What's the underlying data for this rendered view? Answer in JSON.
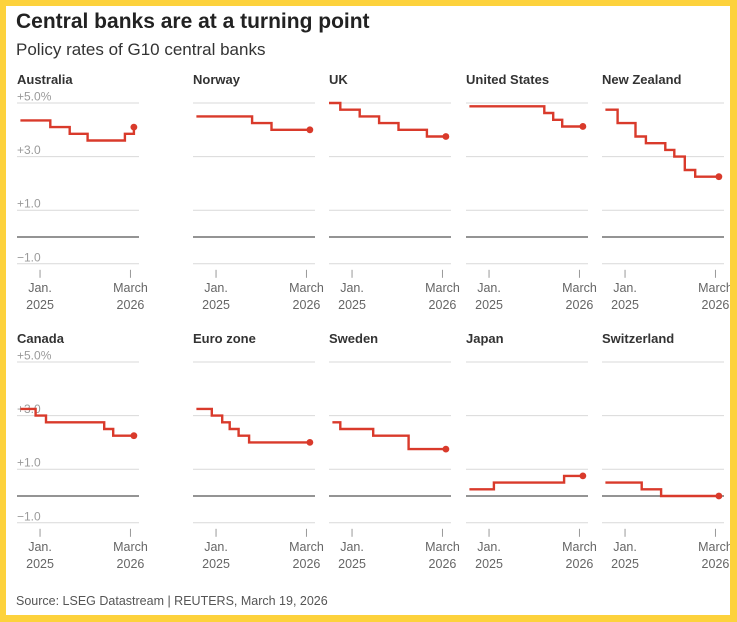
{
  "header": {
    "title": "Central banks are at a turning point",
    "subtitle": "Policy rates of G10 central banks"
  },
  "footer": {
    "source": "Source: LSEG Datastream | REUTERS, March 19, 2026"
  },
  "colors": {
    "line": "#d93a2b",
    "zero_line": "#555555",
    "grid": "#d9d9d9",
    "tick": "#999999"
  },
  "chart_data": {
    "type": "line",
    "step": true,
    "unit": "%",
    "ylim": [
      -1.0,
      5.0
    ],
    "yticks": [
      {
        "value": 5.0,
        "label": "+5.0%"
      },
      {
        "value": 3.0,
        "label": "+3.0"
      },
      {
        "value": 1.0,
        "label": "+1.0"
      },
      {
        "value": -1.0,
        "label": "−1.0"
      }
    ],
    "xlim": [
      "2024-09-15",
      "2026-04-10"
    ],
    "xticks": [
      {
        "date": "2025-01-01",
        "label1": "Jan.",
        "label2": "2025"
      },
      {
        "date": "2026-03-01",
        "label1": "March",
        "label2": "2026"
      }
    ],
    "series": [
      {
        "name": "Australia",
        "points": [
          [
            "2024-10-01",
            4.35
          ],
          [
            "2025-02-18",
            4.1
          ],
          [
            "2025-05-20",
            3.85
          ],
          [
            "2025-08-12",
            3.6
          ],
          [
            "2026-02-03",
            3.85
          ],
          [
            "2026-03-17",
            4.1
          ]
        ]
      },
      {
        "name": "Norway",
        "points": [
          [
            "2024-10-01",
            4.5
          ],
          [
            "2025-06-19",
            4.25
          ],
          [
            "2025-09-18",
            4.0
          ],
          [
            "2026-03-17",
            4.0
          ]
        ]
      },
      {
        "name": "UK",
        "points": [
          [
            "2024-09-15",
            5.0
          ],
          [
            "2024-11-07",
            4.75
          ],
          [
            "2025-02-06",
            4.5
          ],
          [
            "2025-05-08",
            4.25
          ],
          [
            "2025-08-07",
            4.0
          ],
          [
            "2025-12-18",
            3.75
          ],
          [
            "2026-03-17",
            3.75
          ]
        ]
      },
      {
        "name": "United States",
        "points": [
          [
            "2024-10-01",
            4.875
          ],
          [
            "2025-09-17",
            4.625
          ],
          [
            "2025-10-29",
            4.375
          ],
          [
            "2025-12-10",
            4.125
          ],
          [
            "2026-03-17",
            4.125
          ]
        ]
      },
      {
        "name": "New Zealand",
        "points": [
          [
            "2024-10-01",
            4.75
          ],
          [
            "2024-11-27",
            4.25
          ],
          [
            "2025-02-19",
            3.75
          ],
          [
            "2025-04-09",
            3.5
          ],
          [
            "2025-07-09",
            3.25
          ],
          [
            "2025-08-20",
            3.0
          ],
          [
            "2025-10-08",
            2.5
          ],
          [
            "2025-11-26",
            2.25
          ],
          [
            "2026-03-17",
            2.25
          ]
        ]
      },
      {
        "name": "Canada",
        "points": [
          [
            "2024-10-01",
            3.25
          ],
          [
            "2024-12-11",
            3.0
          ],
          [
            "2025-01-29",
            2.75
          ],
          [
            "2025-10-29",
            2.5
          ],
          [
            "2025-12-10",
            2.25
          ],
          [
            "2026-03-17",
            2.25
          ]
        ]
      },
      {
        "name": "Euro zone",
        "points": [
          [
            "2024-10-01",
            3.25
          ],
          [
            "2024-12-12",
            3.0
          ],
          [
            "2025-01-30",
            2.75
          ],
          [
            "2025-03-06",
            2.5
          ],
          [
            "2025-04-17",
            2.25
          ],
          [
            "2025-06-05",
            2.0
          ],
          [
            "2026-03-17",
            2.0
          ]
        ]
      },
      {
        "name": "Sweden",
        "points": [
          [
            "2024-10-01",
            2.75
          ],
          [
            "2024-11-07",
            2.5
          ],
          [
            "2025-04-10",
            2.25
          ],
          [
            "2025-09-23",
            1.75
          ],
          [
            "2026-03-17",
            1.75
          ]
        ]
      },
      {
        "name": "Japan",
        "points": [
          [
            "2024-10-01",
            0.25
          ],
          [
            "2025-01-24",
            0.5
          ],
          [
            "2025-12-19",
            0.75
          ],
          [
            "2026-03-17",
            0.75
          ]
        ]
      },
      {
        "name": "Switzerland",
        "points": [
          [
            "2024-10-01",
            0.5
          ],
          [
            "2024-12-12",
            0.5
          ],
          [
            "2025-03-20",
            0.25
          ],
          [
            "2025-06-19",
            0.0
          ],
          [
            "2026-03-17",
            0.0
          ]
        ]
      }
    ]
  }
}
